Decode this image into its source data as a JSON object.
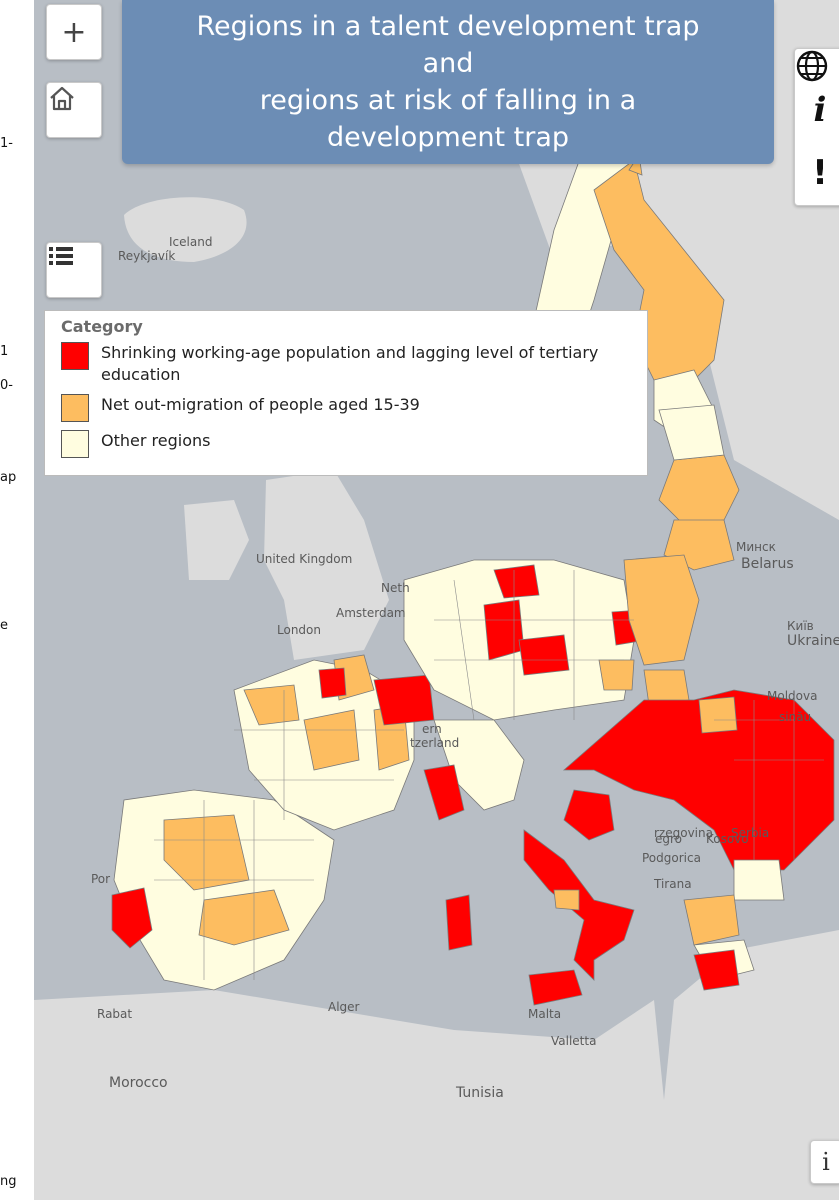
{
  "title": "Regions in a talent development trap\nand\nregions at risk of falling in a\ndevelopment trap",
  "controls": {
    "zoom_in": "+",
    "info": "i",
    "alert": "!"
  },
  "legend": {
    "title": "Category",
    "items": [
      {
        "label": "Shrinking working-age population and lagging level of tertiary education",
        "color": "#ff0000"
      },
      {
        "label": "Net out-migration of people aged 15-39",
        "color": "#fdbd60"
      },
      {
        "label": "Other regions",
        "color": "#fffde0"
      }
    ]
  },
  "map_labels": {
    "iceland": "Iceland",
    "reykjavik": "Reykjavík",
    "united_kingdom": "United Kingdom",
    "london": "London",
    "amsterdam": "Amsterdam",
    "netherlands": "Neth",
    "minsk": "Минск",
    "belarus": "Belarus",
    "kyiv": "Київ",
    "ukraine": "Ukraine",
    "moldova": "Moldova",
    "chisinau": "sinău",
    "serbia": "Serbia",
    "herzegovina": "rzegovina",
    "kosovo": "Kosovo",
    "montenegro": "egro",
    "podgorica": "Podgorica",
    "tirana": "Tirana",
    "rabat": "Rabat",
    "morocco": "Morocco",
    "alger": "Alger",
    "tunisia": "Tunisia",
    "malta": "Malta",
    "valletta": "Valletta",
    "portugal": "Por",
    "switzerland": "tzerland",
    "bern": "ern"
  },
  "margin_fragments": [
    "1-",
    "1",
    "0-",
    "ap",
    "e",
    "ng"
  ],
  "colors": {
    "red": "#ff0000",
    "orange": "#fdbd60",
    "cream": "#fffde0",
    "title_bg": "#6c8db5",
    "sea": "#b8bec5",
    "land_bg": "#dedede"
  }
}
